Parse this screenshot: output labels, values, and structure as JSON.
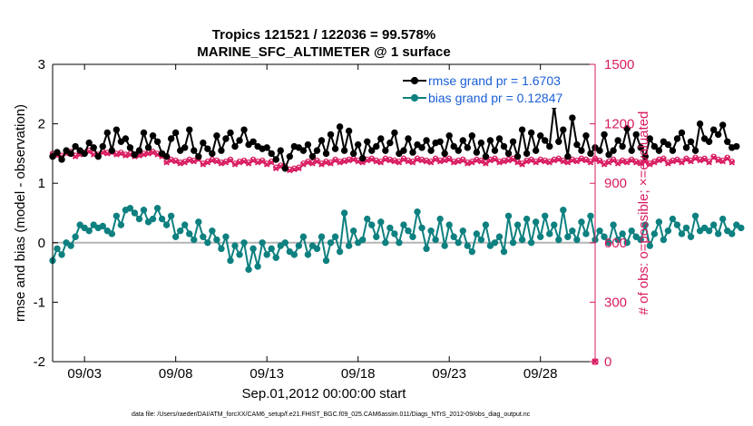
{
  "chart_data": {
    "type": "line",
    "title_line1": "Tropics 121521 / 122036 = 99.578%",
    "title_line2": "MARINE_SFC_ALTIMETER @ 1 surface",
    "xlabel": "Sep.01,2012 00:00:00 start",
    "ylabel_left": "rmse and bias (model - observation)",
    "ylabel_right": "# of obs: o=possible; ×=evaluated",
    "footer": "data file: /Users/raeder/DAI/ATM_forcXX/CAM6_setup/f.e21.FHIST_BGC.f09_025.CAM6assim.011/Diags_NTrS_2012-09/obs_diag_output.nc",
    "x_ticks": [
      3,
      8,
      13,
      18,
      23,
      28
    ],
    "x_tick_labels": [
      "09/03",
      "09/08",
      "09/13",
      "09/18",
      "09/23",
      "09/28"
    ],
    "xlim": [
      1.25,
      31.0
    ],
    "ylim_left": [
      -2,
      3
    ],
    "y_ticks_left": [
      -2,
      -1,
      0,
      1,
      2,
      3
    ],
    "ylim_right": [
      0,
      1500
    ],
    "y_ticks_right": [
      0,
      300,
      600,
      900,
      1200,
      1500
    ],
    "legend": [
      {
        "label": "rmse grand pr = 1.6703",
        "color": "#000000"
      },
      {
        "label": "bias grand pr = 0.12847",
        "color": "#0f8080"
      }
    ],
    "colors": {
      "rmse": "#000000",
      "bias": "#0f8080",
      "obs": "#d81b60",
      "right_axis": "#d81b60",
      "legend_text": "#1a5fd6",
      "zero_line": "#b5b5b5"
    },
    "time_start_day": 1.25,
    "time_step_days": 0.25,
    "series": [
      {
        "name": "rmse",
        "axis": "left",
        "values": [
          1.45,
          1.52,
          1.4,
          1.55,
          1.5,
          1.62,
          1.55,
          1.5,
          1.68,
          1.6,
          1.45,
          1.62,
          1.85,
          1.55,
          1.9,
          1.7,
          1.75,
          1.6,
          1.48,
          1.55,
          1.85,
          1.6,
          1.8,
          1.7,
          1.5,
          1.45,
          1.75,
          1.85,
          1.55,
          1.6,
          1.9,
          1.55,
          1.45,
          1.68,
          1.58,
          1.5,
          1.8,
          1.55,
          1.75,
          1.85,
          1.62,
          1.72,
          1.9,
          1.65,
          1.7,
          1.62,
          1.58,
          1.6,
          1.5,
          1.4,
          1.55,
          1.25,
          1.45,
          1.62,
          1.6,
          1.55,
          1.65,
          1.45,
          1.55,
          1.72,
          1.5,
          1.82,
          1.58,
          1.95,
          1.55,
          1.88,
          1.5,
          1.65,
          1.42,
          1.7,
          1.55,
          1.62,
          1.75,
          1.55,
          1.68,
          1.85,
          1.5,
          1.55,
          1.75,
          1.52,
          1.65,
          1.6,
          1.72,
          1.55,
          1.68,
          1.7,
          1.5,
          1.8,
          1.62,
          1.55,
          1.72,
          1.6,
          1.8,
          1.52,
          1.68,
          1.45,
          1.72,
          1.55,
          1.75,
          1.62,
          1.5,
          1.7,
          1.45,
          1.9,
          1.5,
          1.85,
          1.55,
          1.8,
          1.72,
          1.62,
          2.3,
          1.7,
          1.9,
          1.45,
          2.1,
          1.65,
          1.55,
          1.8,
          1.5,
          1.6,
          1.55,
          1.82,
          1.48,
          1.55,
          1.72,
          1.62,
          1.92,
          1.55,
          1.82,
          1.6,
          1.45,
          1.75,
          1.62,
          1.55,
          1.7,
          1.65,
          1.55,
          1.75,
          1.85,
          1.6,
          1.7,
          1.55,
          2.0,
          1.75,
          1.7,
          1.9,
          1.82,
          1.98,
          1.7,
          1.6,
          1.62
        ]
      },
      {
        "name": "bias",
        "axis": "left",
        "values": [
          -0.3,
          -0.1,
          -0.2,
          0.0,
          -0.05,
          0.1,
          0.3,
          0.25,
          0.2,
          0.3,
          0.25,
          0.28,
          0.2,
          0.15,
          0.45,
          0.3,
          0.55,
          0.58,
          0.5,
          0.4,
          0.55,
          0.35,
          0.4,
          0.58,
          0.4,
          0.3,
          0.45,
          0.1,
          0.2,
          0.3,
          0.15,
          0.05,
          0.35,
          0.1,
          0.0,
          0.2,
          0.05,
          -0.1,
          0.1,
          -0.3,
          -0.05,
          -0.2,
          0.0,
          -0.45,
          -0.1,
          -0.4,
          0.0,
          -0.2,
          -0.1,
          -0.25,
          -0.05,
          0.0,
          -0.15,
          -0.2,
          -0.05,
          0.1,
          -0.2,
          -0.05,
          -0.1,
          0.1,
          -0.3,
          0.0,
          0.1,
          -0.15,
          0.5,
          -0.05,
          0.2,
          0.0,
          0.05,
          0.4,
          0.3,
          0.1,
          0.35,
          0.0,
          0.25,
          0.15,
          0.0,
          0.3,
          0.2,
          0.1,
          0.52,
          0.25,
          -0.1,
          0.2,
          0.05,
          0.4,
          -0.05,
          0.3,
          0.1,
          0.0,
          0.2,
          -0.05,
          -0.15,
          0.15,
          0.05,
          0.3,
          -0.05,
          0.0,
          0.1,
          -0.15,
          0.45,
          0.0,
          0.3,
          0.05,
          0.4,
          0.0,
          0.35,
          0.1,
          0.45,
          0.15,
          0.3,
          0.05,
          0.55,
          0.1,
          0.2,
          0.05,
          0.35,
          0.15,
          0.45,
          0.05,
          0.2,
          0.1,
          0.0,
          0.3,
          0.05,
          0.15,
          0.0,
          0.2,
          0.1,
          0.05,
          0.3,
          -0.05,
          0.15,
          0.35,
          0.05,
          0.2,
          0.4,
          0.3,
          0.15,
          0.25,
          0.1,
          0.45,
          0.2,
          0.25,
          0.2,
          0.3,
          0.15,
          0.4,
          0.2,
          0.15,
          0.3,
          0.25
        ]
      },
      {
        "name": "obs_possible",
        "axis": "right",
        "values": [
          1050,
          1045,
          1040,
          1055,
          1060,
          1040,
          1050,
          1055,
          1065,
          1050,
          1045,
          1060,
          1055,
          1060,
          1050,
          1055,
          1045,
          1050,
          1040,
          1045,
          1050,
          1055,
          1060,
          1050,
          1040,
          1010,
          1020,
          1015,
          1005,
          1010,
          1020,
          1015,
          1025,
          1000,
          1010,
          1020,
          1015,
          1005,
          1010,
          1020,
          1000,
          1010,
          1015,
          1005,
          1020,
          1010,
          1015,
          1000,
          1010,
          980,
          990,
          985,
          970,
          975,
          980,
          1000,
          1010,
          1005,
          1015,
          1000,
          1010,
          1005,
          1020,
          1010,
          1015,
          1020,
          1025,
          1015,
          1010,
          1020,
          1025,
          1015,
          1010,
          1025,
          1020,
          1015,
          1010,
          1025,
          1015,
          1010,
          1025,
          1020,
          1015,
          1010,
          1025,
          1015,
          1020,
          1025,
          1010,
          1015,
          1020,
          1005,
          1010,
          1020,
          1015,
          1005,
          1020,
          1025,
          1010,
          1015,
          1020,
          1025,
          1010,
          1000,
          1015,
          1020,
          1010,
          1020,
          1015,
          1010,
          1020,
          1025,
          1015,
          1010,
          1020,
          1015,
          1025,
          1020,
          1010,
          1025,
          1015,
          1000,
          1010,
          1020,
          1005,
          1015,
          1010,
          1020,
          1010,
          1005,
          1015,
          1000,
          1010,
          1020,
          1025,
          1005,
          1015,
          1020,
          1010,
          1025,
          1015,
          1030,
          1020,
          1025,
          1010,
          1035,
          1020,
          1015,
          1030,
          1010
        ]
      },
      {
        "name": "obs_evaluated",
        "axis": "right",
        "values": [
          1045,
          1040,
          1035,
          1050,
          1055,
          1035,
          1045,
          1050,
          1060,
          1045,
          1040,
          1055,
          1050,
          1055,
          1045,
          1050,
          1040,
          1045,
          1035,
          1040,
          1045,
          1050,
          1055,
          1045,
          1035,
          1005,
          1015,
          1010,
          1000,
          1005,
          1015,
          1010,
          1020,
          995,
          1005,
          1015,
          1010,
          1000,
          1005,
          1015,
          995,
          1005,
          1010,
          1000,
          1015,
          1005,
          1010,
          995,
          1005,
          975,
          985,
          980,
          965,
          970,
          975,
          995,
          1005,
          1000,
          1010,
          995,
          1005,
          1000,
          1015,
          1005,
          1010,
          1015,
          1020,
          1010,
          1005,
          1015,
          1020,
          1010,
          1005,
          1020,
          1015,
          1010,
          1005,
          1020,
          1010,
          1005,
          1020,
          1015,
          1010,
          1005,
          1020,
          1010,
          1015,
          1020,
          1005,
          1010,
          1015,
          1000,
          1005,
          1015,
          1010,
          1000,
          1015,
          1020,
          1005,
          1010,
          1015,
          1020,
          1005,
          995,
          1010,
          1015,
          1005,
          1015,
          1010,
          1005,
          1015,
          1020,
          1010,
          1005,
          1015,
          1010,
          1020,
          1015,
          1005,
          1020,
          1010,
          995,
          1005,
          1015,
          1000,
          1010,
          1005,
          1015,
          1005,
          1000,
          1010,
          995,
          1005,
          1015,
          1020,
          1000,
          1010,
          1015,
          1005,
          1020,
          1010,
          1025,
          1015,
          1020,
          1005,
          1030,
          1015,
          1010,
          1025,
          1005
        ]
      },
      {
        "name": "obs_extra",
        "axis": "right",
        "points": [
          {
            "x": 31.0,
            "y": 0
          }
        ]
      }
    ]
  }
}
